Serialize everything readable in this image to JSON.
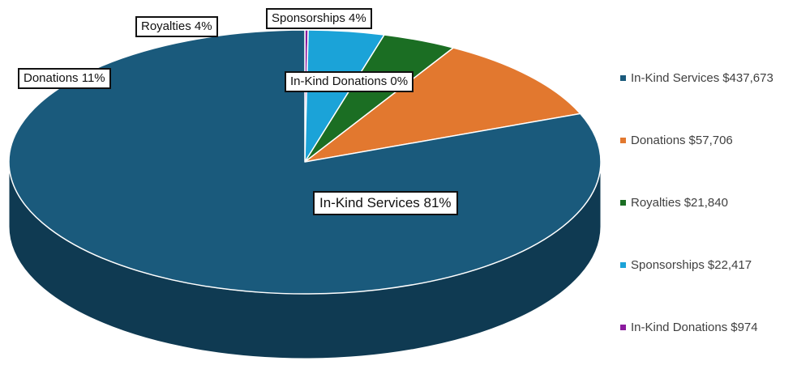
{
  "chart_data": {
    "type": "pie",
    "style": "3d",
    "slices": [
      {
        "name": "In-Kind Services",
        "value": 437673,
        "value_label": "$437,673",
        "percent_label": "In-Kind Services  81%",
        "color": "#1a5a7c",
        "side_color": "#0f3a52"
      },
      {
        "name": "Donations",
        "value": 57706,
        "value_label": "$57,706",
        "percent_label": "Donations 11%",
        "color": "#e2782f",
        "side_color": "#9c4f1c"
      },
      {
        "name": "Royalties",
        "value": 21840,
        "value_label": "$21,840",
        "percent_label": "Royalties 4%",
        "color": "#1b6e23",
        "side_color": "#114a17"
      },
      {
        "name": "Sponsorships",
        "value": 22417,
        "value_label": "$22,417",
        "percent_label": "Sponsorships 4%",
        "color": "#1ba3d8",
        "side_color": "#137096"
      },
      {
        "name": "In-Kind Donations",
        "value": 974,
        "value_label": "$974",
        "percent_label": "In-Kind Donations 0%",
        "color": "#8b1a9e",
        "side_color": "#5d116a"
      }
    ],
    "legend": {
      "position": "right"
    }
  }
}
